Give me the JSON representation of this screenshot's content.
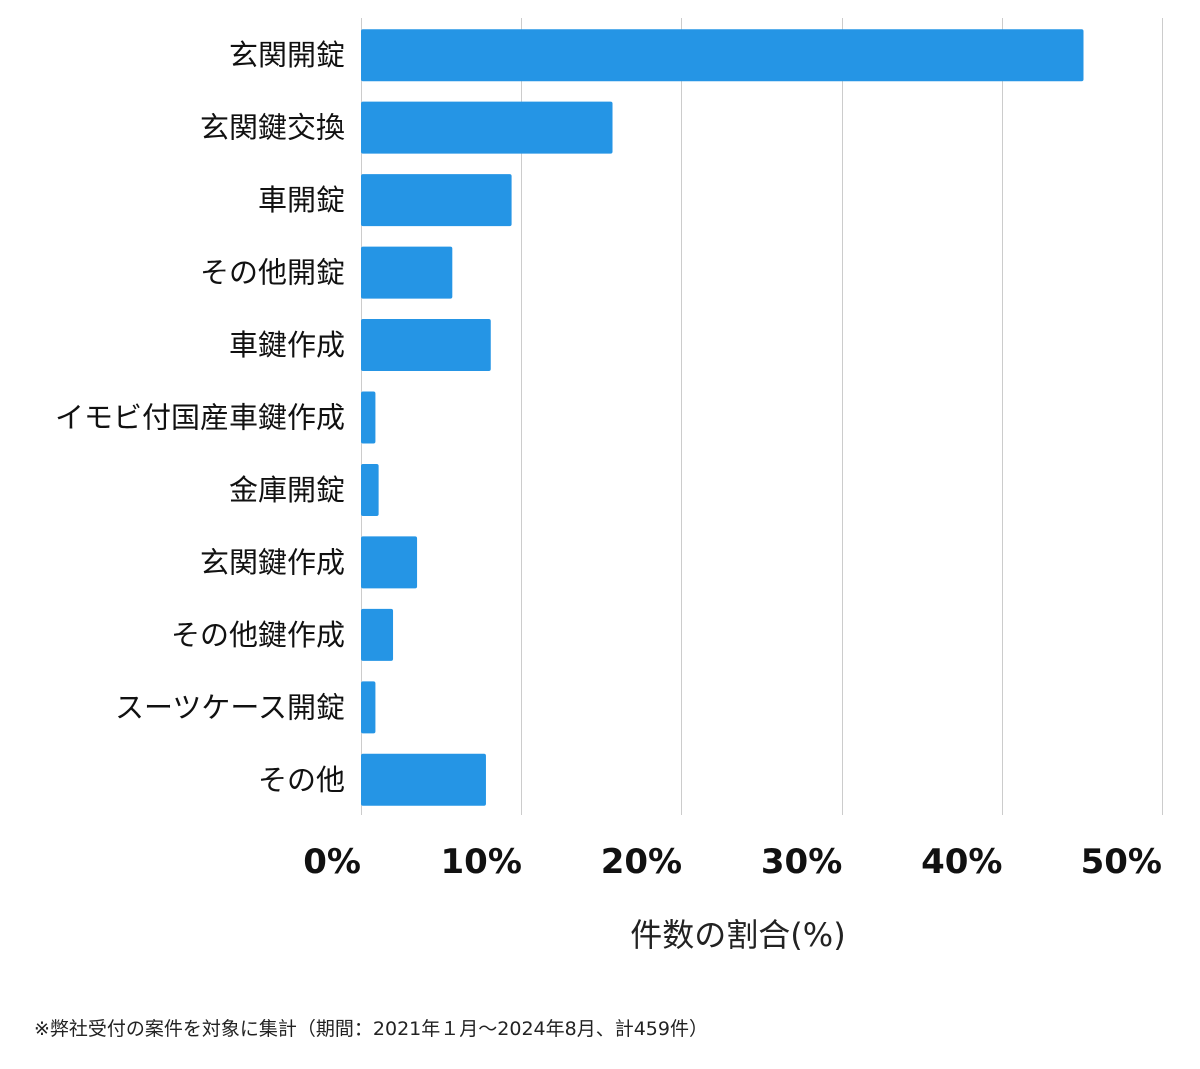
{
  "chart_data": {
    "type": "bar",
    "orientation": "horizontal",
    "categories": [
      "玄関開錠",
      "玄関鍵交換",
      "車開錠",
      "その他開錠",
      "車鍵作成",
      "イモビ付国産車鍵作成",
      "金庫開錠",
      "玄関鍵作成",
      "その他鍵作成",
      "スーツケース開錠",
      "その他"
    ],
    "values": [
      45.1,
      15.7,
      9.4,
      5.7,
      8.1,
      0.9,
      1.1,
      3.5,
      2.0,
      0.9,
      7.8
    ],
    "xlim": [
      0,
      50
    ],
    "xticks": [
      0,
      10,
      20,
      30,
      40,
      50
    ],
    "tick_suffix": "%",
    "xlabel": "件数の割合(%)",
    "ylabel": "",
    "title": "",
    "grid": "vertical",
    "bar_color": "#2595e5"
  },
  "footnote": "※弊社受付の案件を対象に集計（期間：2021年１月～2024年8月、計459件）"
}
